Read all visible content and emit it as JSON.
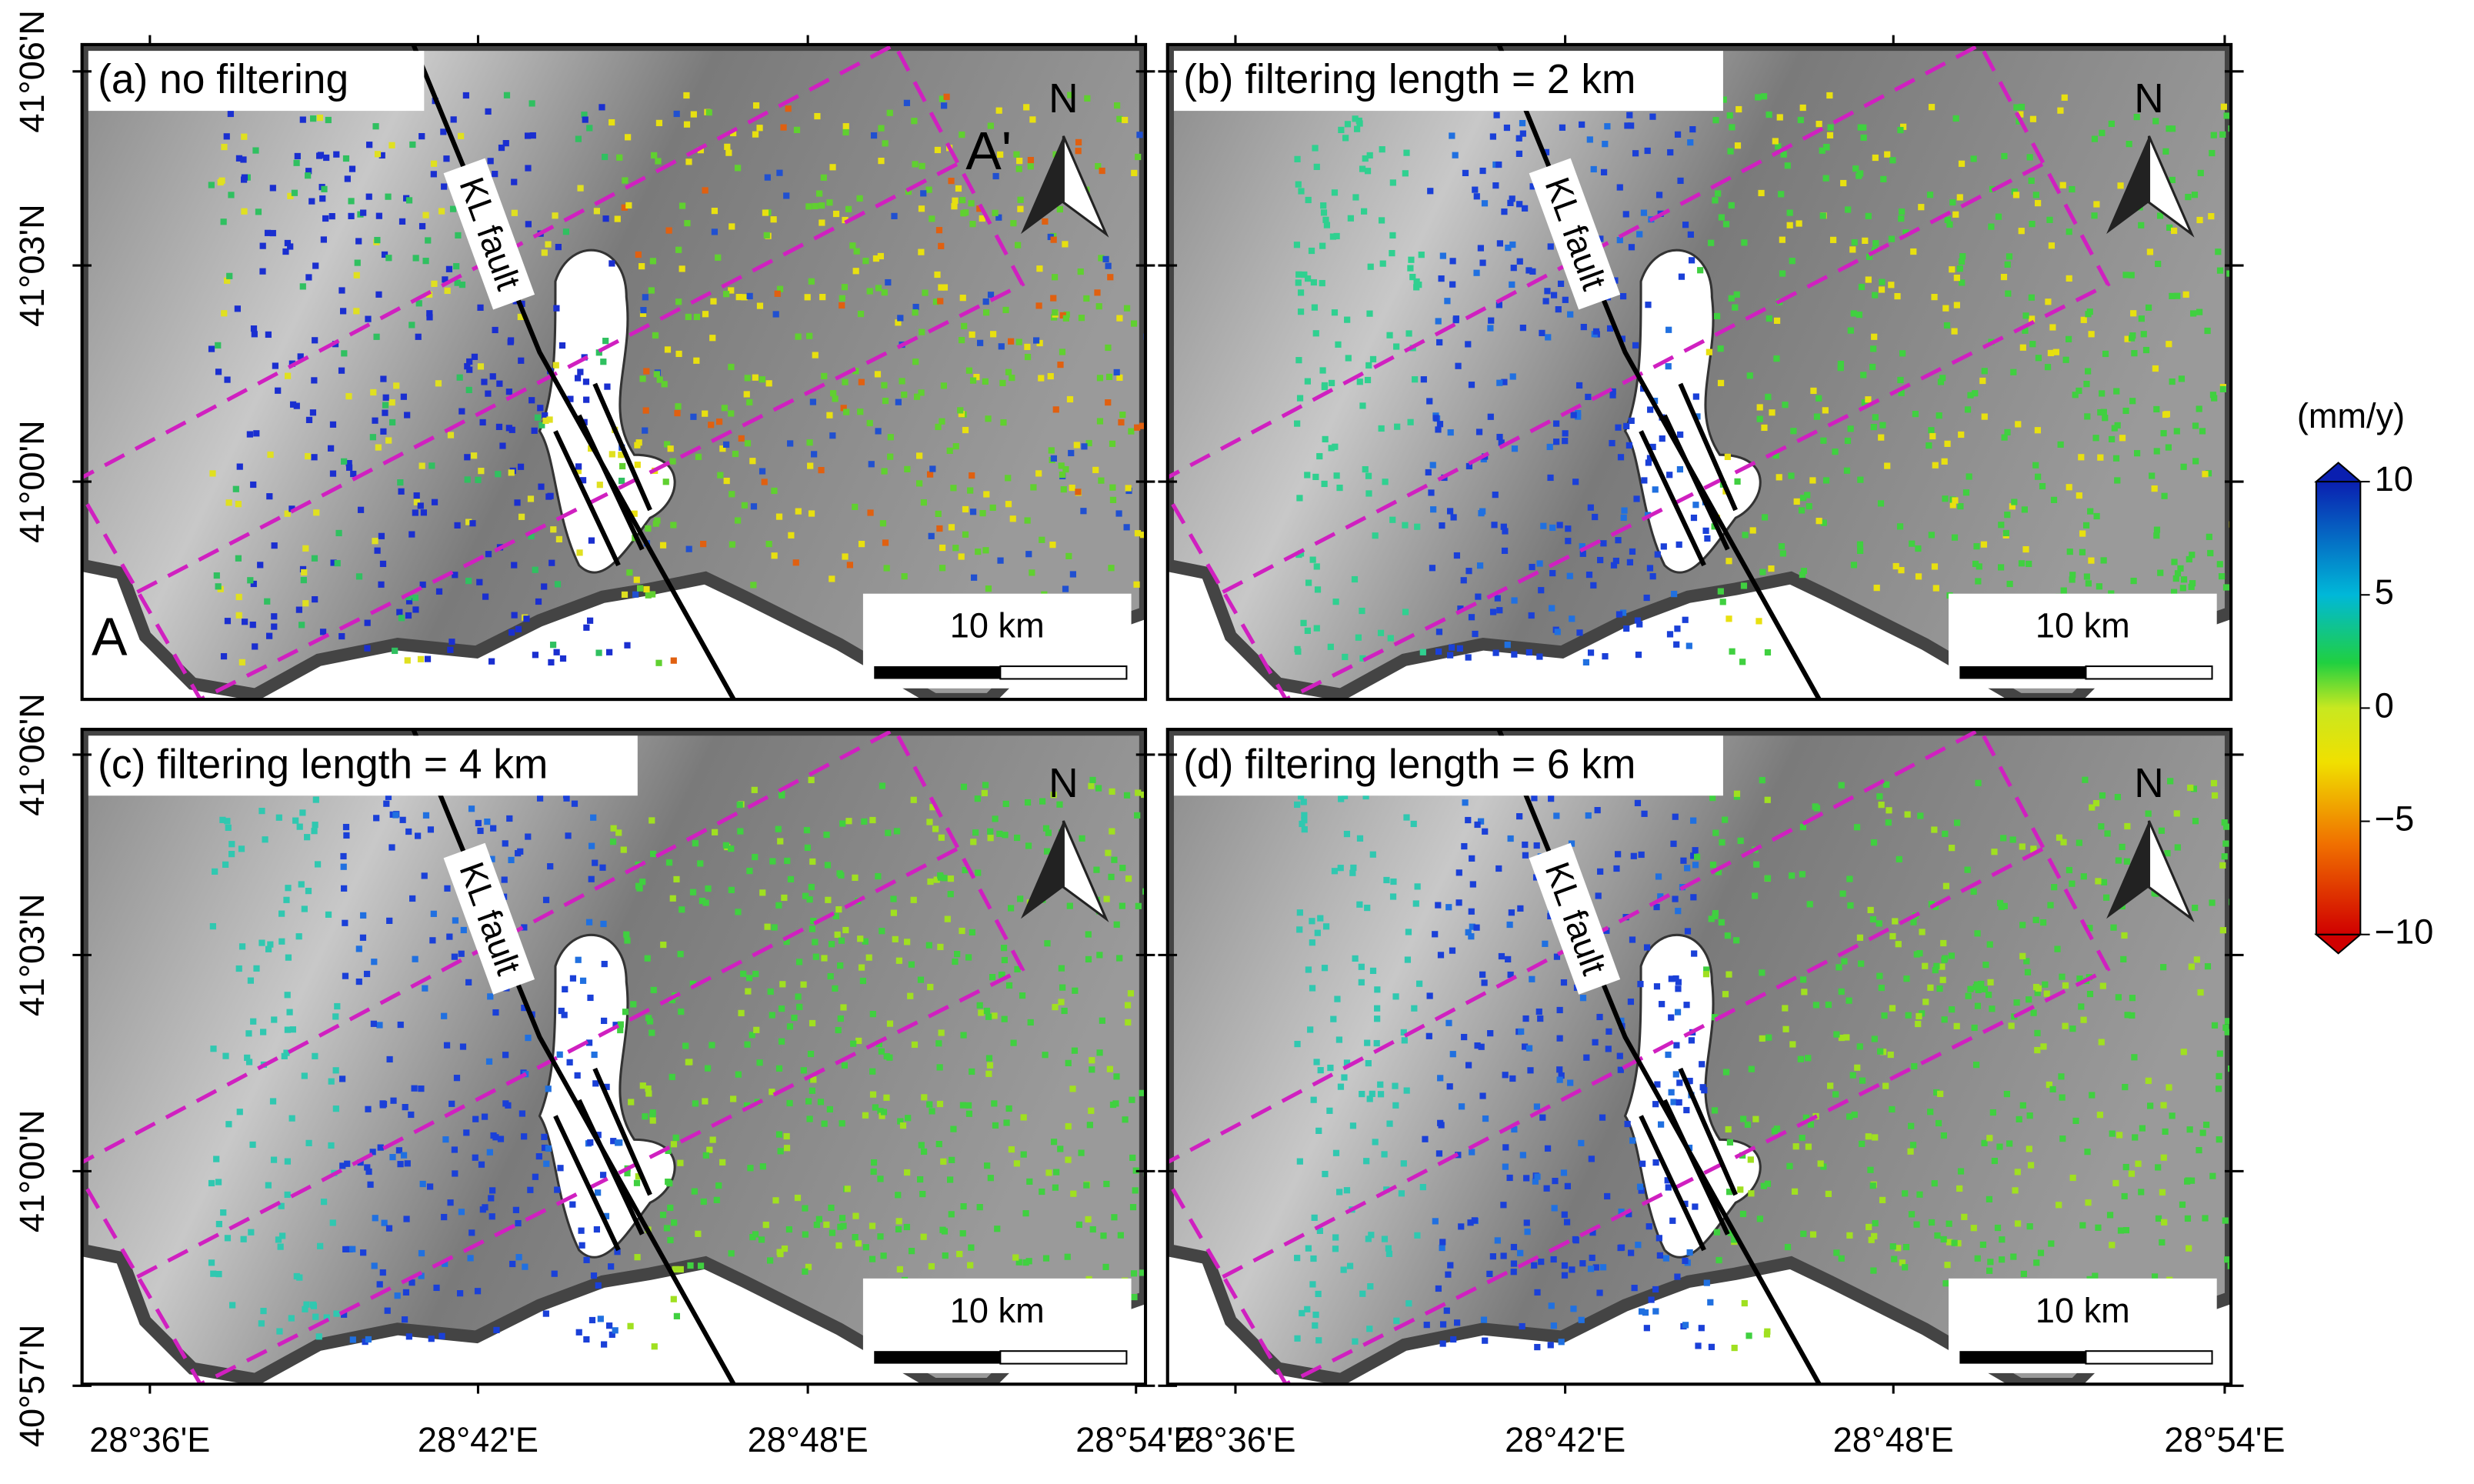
{
  "panels": [
    {
      "label": "(a) no filtering",
      "fault_label": "KL fault",
      "scale_label": "10 km",
      "north": "N"
    },
    {
      "label": "(b) filtering length = 2 km",
      "fault_label": "KL fault",
      "scale_label": "10 km",
      "north": "N"
    },
    {
      "label": "(c) filtering length = 4 km",
      "fault_label": "KL fault",
      "scale_label": "10 km",
      "north": "N"
    },
    {
      "label": "(d) filtering length = 6 km",
      "fault_label": "KL fault",
      "scale_label": "10 km",
      "north": "N"
    }
  ],
  "profile": {
    "start": "A",
    "end": "A'"
  },
  "lat_labels": {
    "top_row": [
      "41°06'N",
      "41°03'N",
      "41°00'N"
    ],
    "bottom_row": [
      "41°06'N",
      "41°03'N",
      "41°00'N",
      "40°57'N"
    ]
  },
  "lon_labels": {
    "left_column": [
      "28°36'E",
      "28°42'E",
      "28°48'E",
      "28°54'E"
    ],
    "right_column": [
      "28°36'E",
      "28°42'E",
      "28°48'E",
      "28°54'E"
    ]
  },
  "colorbar": {
    "title": "(mm/y)",
    "lim": [
      -10,
      10
    ],
    "ticks": [
      10,
      5,
      0,
      {
        "value": -5,
        "label": "−5"
      },
      {
        "value": -10,
        "label": "−10"
      }
    ]
  }
}
